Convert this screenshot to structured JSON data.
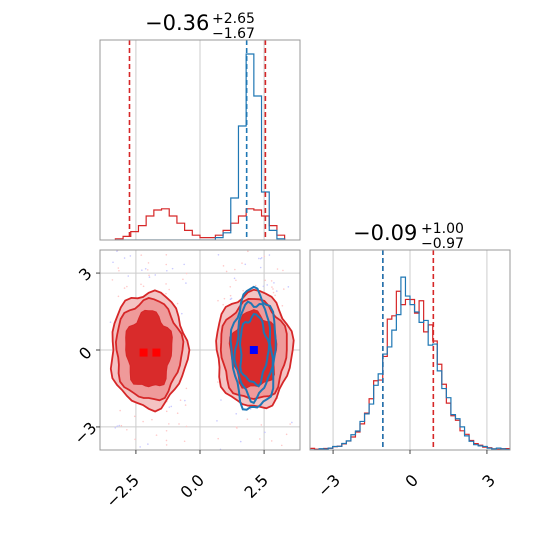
{
  "chart_data": {
    "type": "corner",
    "colors": {
      "series_a": "#1f77b4",
      "series_b": "#d62728",
      "grid": "#cccccc",
      "frame": "#999999",
      "marker_a": "#0000ff",
      "marker_b": "#ff0000"
    },
    "panels": [
      {
        "id": "param1-marginal",
        "type": "histogram",
        "title": {
          "value": "−0.36",
          "upper": "+2.65",
          "lower": "−1.67"
        },
        "xlim": [
          -3.9,
          3.9
        ],
        "bins_x": [
          -3.15,
          -2.85,
          -2.55,
          -2.25,
          -1.95,
          -1.65,
          -1.35,
          -1.05,
          -0.75,
          -0.45,
          -0.15,
          0.15,
          0.45,
          0.75,
          1.05,
          1.35,
          1.65,
          1.95,
          2.25,
          2.55,
          2.85,
          3.15
        ],
        "series": [
          {
            "color_key": "series_b",
            "values": [
              1,
              3,
              7,
              12,
              20,
              25,
              26,
              20,
              14,
              8,
              4,
              2,
              2,
              4,
              8,
              14,
              20,
              26,
              25,
              20,
              12,
              4
            ]
          },
          {
            "color_key": "series_a",
            "values": [
              0,
              0,
              0,
              0,
              0,
              0,
              0,
              0,
              0,
              0,
              0,
              0,
              0,
              2,
              6,
              35,
              95,
              155,
              120,
              40,
              8,
              1
            ]
          }
        ],
        "quantile_lines": [
          {
            "color_key": "series_b",
            "values": [
              -2.75,
              2.55
            ]
          },
          {
            "color_key": "series_a",
            "values": [
              1.82
            ]
          }
        ]
      },
      {
        "id": "param1-param2-joint",
        "type": "contour",
        "xlim": [
          -3.9,
          3.9
        ],
        "ylim": [
          -3.9,
          3.9
        ],
        "xticks": [
          "−2.5",
          "0.0",
          "2.5"
        ],
        "yticks": [
          "3",
          "0",
          "−3"
        ],
        "xtick_values": [
          -2.5,
          0,
          2.5
        ],
        "ytick_values": [
          3,
          0,
          -3
        ],
        "modes_b": [
          {
            "cx": -2.0,
            "cy": 0.0
          },
          {
            "cx": 2.1,
            "cy": 0.0
          }
        ],
        "mode_a": {
          "cx": 2.1,
          "cy": 0.0
        },
        "markers": [
          {
            "color_key": "marker_b",
            "points": [
              [
                -2.2,
                -0.1
              ],
              [
                -1.7,
                -0.1
              ]
            ]
          },
          {
            "color_key": "marker_a",
            "points": [
              [
                2.1,
                0.0
              ]
            ]
          }
        ]
      },
      {
        "id": "param2-marginal",
        "type": "histogram",
        "title": {
          "value": "−0.09",
          "upper": "+1.00",
          "lower": "−0.97"
        },
        "xlim": [
          -3.9,
          3.9
        ],
        "xticks": [
          "−3",
          "0",
          "3"
        ],
        "xtick_values": [
          -3,
          0,
          3
        ],
        "quantile_lines": [
          {
            "color_key": "series_b",
            "values": [
              -1.06,
              0.91
            ]
          },
          {
            "color_key": "series_a",
            "values": [
              -1.06
            ]
          }
        ]
      }
    ]
  }
}
